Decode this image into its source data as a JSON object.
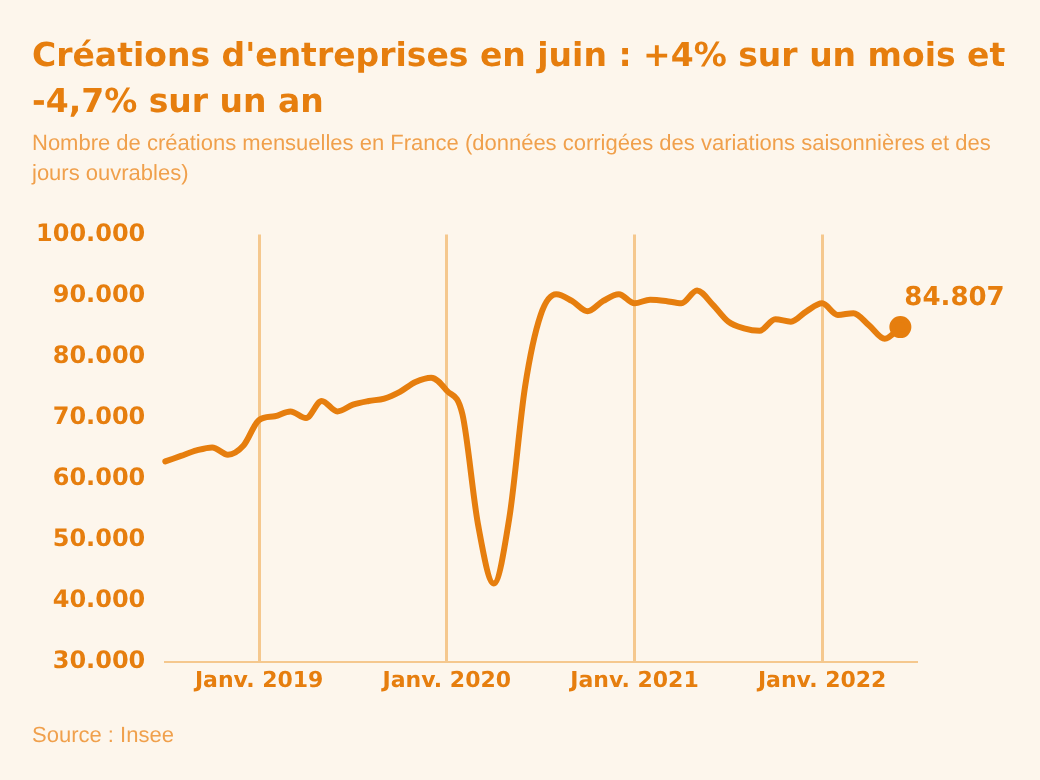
{
  "chart_data": {
    "type": "line",
    "title": "Créations d'entreprises en juin : +4% sur un mois et -4,7% sur un an",
    "subtitle": "Nombre de créations mensuelles en France (données corrigées des variations saisonnières et des jours ouvrables)",
    "annotations": [
      "Source : Insee"
    ],
    "x": [
      "2018-07",
      "2018-08",
      "2018-09",
      "2018-10",
      "2018-11",
      "2018-12",
      "2019-01",
      "2019-02",
      "2019-03",
      "2019-04",
      "2019-05",
      "2019-06",
      "2019-07",
      "2019-08",
      "2019-09",
      "2019-10",
      "2019-11",
      "2019-12",
      "2020-01",
      "2020-02",
      "2020-03",
      "2020-04",
      "2020-05",
      "2020-06",
      "2020-07",
      "2020-08",
      "2020-09",
      "2020-10",
      "2020-11",
      "2020-12",
      "2021-01",
      "2021-02",
      "2021-03",
      "2021-04",
      "2021-05",
      "2021-06",
      "2021-07",
      "2021-08",
      "2021-09",
      "2021-10",
      "2021-11",
      "2021-12",
      "2022-01",
      "2022-02",
      "2022-03",
      "2022-04",
      "2022-05",
      "2022-06"
    ],
    "series": [
      {
        "color": "#e67e0e",
        "values": [
          62800,
          63700,
          64600,
          65100,
          63900,
          65400,
          69600,
          70200,
          71000,
          69900,
          72700,
          71000,
          72100,
          72700,
          73100,
          74200,
          75800,
          76500,
          74400,
          70500,
          52400,
          42800,
          53600,
          75000,
          86800,
          90200,
          89100,
          87400,
          89100,
          90200,
          88700,
          89300,
          89100,
          88700,
          90800,
          88500,
          85700,
          84600,
          84200,
          86100,
          85700,
          87400,
          88700,
          86800,
          87100,
          85100,
          82900,
          84807
        ],
        "value_labels": [
          null,
          null,
          null,
          null,
          null,
          null,
          null,
          null,
          null,
          null,
          null,
          null,
          null,
          null,
          null,
          null,
          null,
          null,
          null,
          null,
          null,
          null,
          null,
          null,
          null,
          null,
          null,
          null,
          null,
          null,
          null,
          null,
          null,
          null,
          null,
          null,
          null,
          null,
          null,
          null,
          null,
          null,
          null,
          null,
          null,
          null,
          null,
          "84.807"
        ]
      }
    ],
    "xticks": [
      {
        "value": "2019-01",
        "label": "Janv. 2019"
      },
      {
        "value": "2020-01",
        "label": "Janv. 2020"
      },
      {
        "value": "2021-01",
        "label": "Janv. 2021"
      },
      {
        "value": "2022-01",
        "label": "Janv. 2022"
      }
    ],
    "xlim": [
      "2018-07",
      "2022-07"
    ],
    "ylim": [
      30000,
      100000
    ],
    "yticks": [
      {
        "value": 30000,
        "label": "30.000"
      },
      {
        "value": 40000,
        "label": "40.000"
      },
      {
        "value": 50000,
        "label": "50.000"
      },
      {
        "value": 60000,
        "label": "60.000"
      },
      {
        "value": 70000,
        "label": "70.000"
      },
      {
        "value": 80000,
        "label": "80.000"
      },
      {
        "value": 90000,
        "label": "90.000"
      },
      {
        "value": 100000,
        "label": "100.000"
      }
    ],
    "grid": "x",
    "legend": false,
    "marker": "none",
    "line_style": "solid"
  }
}
